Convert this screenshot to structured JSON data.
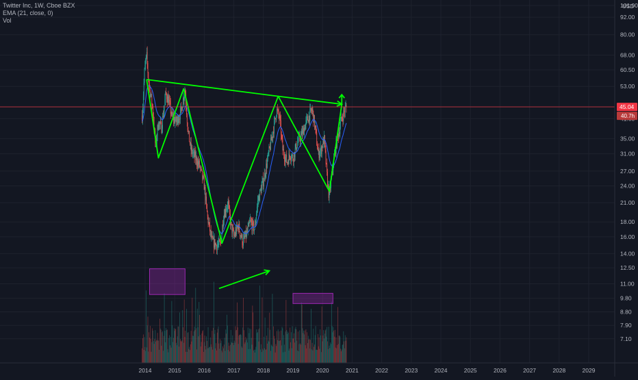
{
  "legend": {
    "symbol": "Twitter Inc, 1W, Cboe BZX",
    "ema": "EMA (21, close, 0)",
    "vol": "Vol"
  },
  "colors": {
    "background": "#131722",
    "grid": "#1e222d",
    "up": "#26a69a",
    "down": "#ef5350",
    "ema": "#2962ff",
    "pattern": "#00ff00",
    "box_border": "#9c27b0",
    "box_fill": "#9c27b0",
    "price_line": "#f23645",
    "axis_text": "#b2b5be"
  },
  "chart_data": {
    "type": "candlestick",
    "title": "Twitter Inc, 1W, Cboe BZX",
    "y_scale": "log",
    "ylim": [
      6.5,
      101
    ],
    "xlim": [
      2013.95,
      2029.9
    ],
    "y_ticks": [
      "101.00",
      "92.00",
      "80.00",
      "68.00",
      "60.50",
      "53.00",
      "45.04",
      "41.00",
      "35.00",
      "31.00",
      "27.00",
      "24.00",
      "21.00",
      "18.00",
      "16.00",
      "14.00",
      "12.50",
      "11.00",
      "9.80",
      "8.80",
      "7.90",
      "7.10"
    ],
    "x_ticks": [
      "2014",
      "2015",
      "2016",
      "2017",
      "2018",
      "2019",
      "2020",
      "2021",
      "2022",
      "2023",
      "2024",
      "2025",
      "2026",
      "2027",
      "2028",
      "2029"
    ],
    "currency": "USD",
    "last_price_label": "45.04",
    "second_label": "40.7h",
    "price_path": [
      [
        2013.9,
        42
      ],
      [
        2013.98,
        60
      ],
      [
        2014.05,
        68
      ],
      [
        2014.12,
        55
      ],
      [
        2014.25,
        45
      ],
      [
        2014.35,
        33
      ],
      [
        2014.45,
        40
      ],
      [
        2014.55,
        38
      ],
      [
        2014.7,
        50
      ],
      [
        2014.8,
        47
      ],
      [
        2014.9,
        42
      ],
      [
        2015.05,
        40
      ],
      [
        2015.2,
        43
      ],
      [
        2015.35,
        52
      ],
      [
        2015.45,
        37
      ],
      [
        2015.55,
        32
      ],
      [
        2015.7,
        30
      ],
      [
        2015.85,
        28
      ],
      [
        2016.0,
        24
      ],
      [
        2016.1,
        19
      ],
      [
        2016.25,
        15.5
      ],
      [
        2016.4,
        15
      ],
      [
        2016.55,
        15
      ],
      [
        2016.65,
        19
      ],
      [
        2016.8,
        21
      ],
      [
        2016.9,
        17.5
      ],
      [
        2017.0,
        16
      ],
      [
        2017.15,
        17.5
      ],
      [
        2017.3,
        15.3
      ],
      [
        2017.45,
        16.5
      ],
      [
        2017.55,
        18
      ],
      [
        2017.7,
        17
      ],
      [
        2017.8,
        21
      ],
      [
        2017.9,
        23
      ],
      [
        2018.0,
        25
      ],
      [
        2018.15,
        30
      ],
      [
        2018.3,
        36
      ],
      [
        2018.45,
        44
      ],
      [
        2018.55,
        41
      ],
      [
        2018.65,
        32
      ],
      [
        2018.8,
        29
      ],
      [
        2018.9,
        31
      ],
      [
        2019.0,
        30
      ],
      [
        2019.15,
        34
      ],
      [
        2019.3,
        36
      ],
      [
        2019.45,
        40
      ],
      [
        2019.55,
        42
      ],
      [
        2019.65,
        44
      ],
      [
        2019.75,
        38
      ],
      [
        2019.85,
        31
      ],
      [
        2019.95,
        32
      ],
      [
        2020.05,
        35
      ],
      [
        2020.15,
        26
      ],
      [
        2020.22,
        22
      ],
      [
        2020.35,
        28
      ],
      [
        2020.45,
        33
      ],
      [
        2020.55,
        37
      ],
      [
        2020.65,
        41
      ],
      [
        2020.75,
        44
      ],
      [
        2020.8,
        45
      ]
    ],
    "pattern_lines": [
      {
        "name": "trendline",
        "points": [
          [
            2014.05,
            56
          ],
          [
            2018.5,
            49
          ],
          [
            2020.65,
            46
          ]
        ]
      },
      {
        "name": "zigzag",
        "points": [
          [
            2014.05,
            56
          ],
          [
            2014.45,
            30
          ],
          [
            2015.3,
            52
          ],
          [
            2016.6,
            15.2
          ],
          [
            2018.5,
            49
          ],
          [
            2020.23,
            23
          ],
          [
            2020.65,
            46
          ]
        ]
      },
      {
        "name": "volume-arrow",
        "points": [
          [
            2016.5,
            10.6
          ],
          [
            2018.2,
            12.2
          ]
        ]
      }
    ],
    "boxes": [
      {
        "name": "volume-box-1",
        "x": [
          2014.15,
          2015.35
        ],
        "y": [
          10.1,
          12.4
        ]
      },
      {
        "name": "volume-box-2",
        "x": [
          2019.0,
          2020.35
        ],
        "y": [
          9.4,
          10.2
        ]
      }
    ]
  }
}
